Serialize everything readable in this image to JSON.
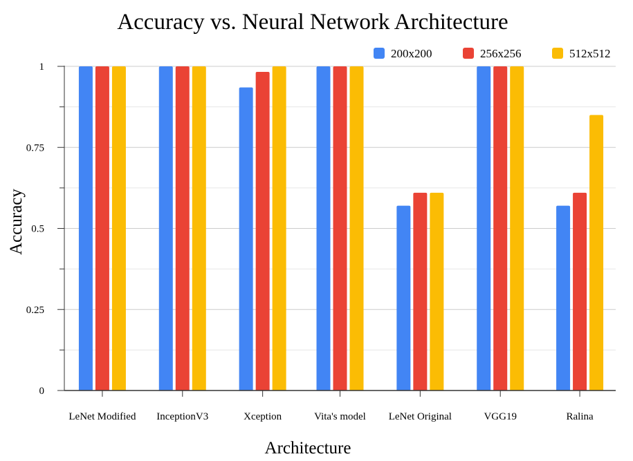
{
  "chart_data": {
    "type": "bar",
    "title": "Accuracy vs. Neural Network Architecture",
    "xlabel": "Architecture",
    "ylabel": "Accuracy",
    "ylim": [
      0,
      1
    ],
    "yticks": [
      "0",
      "0.25",
      "0.5",
      "0.75",
      "1"
    ],
    "grid": true,
    "legend_position": "top-right",
    "categories": [
      "LeNet Modified",
      "InceptionV3",
      "Xception",
      "Vita's model",
      "LeNet Original",
      "VGG19",
      "Ralina"
    ],
    "series": [
      {
        "name": "200x200",
        "color": "#4285f4",
        "values": [
          1.0,
          1.0,
          0.935,
          1.0,
          0.57,
          1.0,
          0.57
        ]
      },
      {
        "name": "256x256",
        "color": "#ea4335",
        "values": [
          1.0,
          1.0,
          0.983,
          1.0,
          0.61,
          1.0,
          0.61
        ]
      },
      {
        "name": "512x512",
        "color": "#fbbc04",
        "values": [
          1.0,
          1.0,
          1.0,
          1.0,
          0.61,
          1.0,
          0.85
        ]
      }
    ]
  }
}
